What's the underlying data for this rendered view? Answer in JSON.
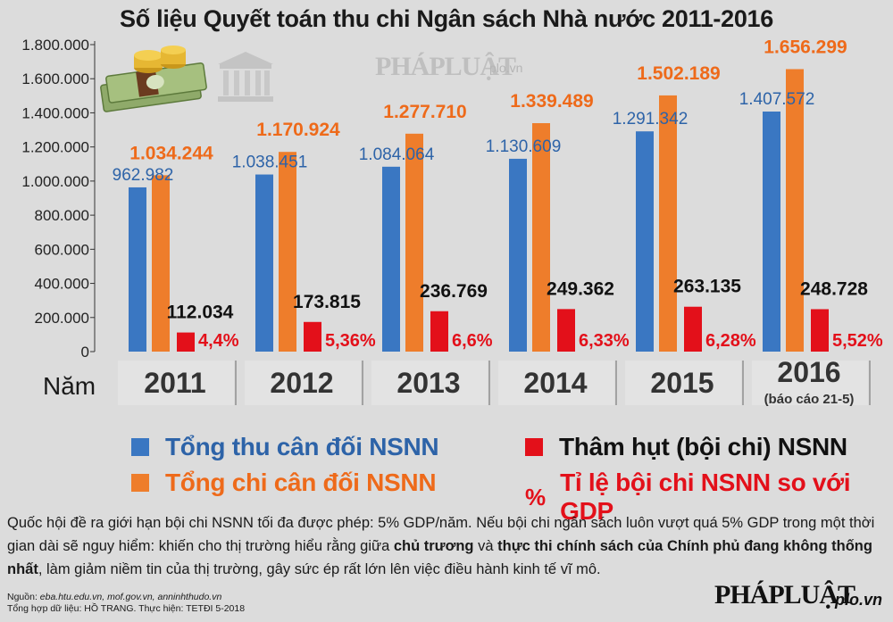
{
  "title": "Số liệu Quyết toán thu chi Ngân sách Nhà nước 2011-2016",
  "watermark": {
    "brand": "PHÁPLUẬT",
    "site": "plo.vn"
  },
  "colors": {
    "revenue": "#3a77c2",
    "expenditure": "#ee7d2b",
    "deficit": "#e3101a",
    "revenue_label": "#2d63a8",
    "expenditure_label": "#ee6a1a",
    "deficit_pct": "#e3101a"
  },
  "chart_data": {
    "type": "bar",
    "title": "Số liệu Quyết toán thu chi Ngân sách Nhà nước 2011-2016",
    "xlabel": "Năm",
    "categories": [
      "2011",
      "2012",
      "2013",
      "2014",
      "2015",
      "2016"
    ],
    "category_sublabels": [
      "",
      "",
      "",
      "",
      "",
      "(báo cáo 21-5)"
    ],
    "ylim": [
      0,
      1800000
    ],
    "yticks": [
      "1.800.000",
      "1.600.000",
      "1.400.000",
      "1.200.000",
      "1.000.000",
      "800.000",
      "600.000",
      "400.000",
      "200.000",
      "0"
    ],
    "series": [
      {
        "name": "Tổng thu cân đối NSNN",
        "values": [
          962982,
          1038451,
          1084064,
          1130609,
          1291342,
          1407572
        ],
        "labels": [
          "962.982",
          "1.038.451",
          "1.084.064",
          "1.130.609",
          "1.291.342",
          "1.407.572"
        ]
      },
      {
        "name": "Tổng chi cân đối NSNN",
        "values": [
          1034244,
          1170924,
          1277710,
          1339489,
          1502189,
          1656299
        ],
        "labels": [
          "1.034.244",
          "1.170.924",
          "1.277.710",
          "1.339.489",
          "1.502.189",
          "1.656.299"
        ]
      },
      {
        "name": "Thâm hụt (bội chi) NSNN",
        "values": [
          112034,
          173815,
          236769,
          249362,
          263135,
          248728
        ],
        "labels": [
          "112.034",
          "173.815",
          "236.769",
          "249.362",
          "263.135",
          "248.728"
        ]
      }
    ],
    "deficit_gdp_ratio": [
      "4,4%",
      "5,36%",
      "6,6%",
      "6,33%",
      "6,28%",
      "5,52%"
    ],
    "legend_position": "bottom",
    "grid": false
  },
  "legend": {
    "revenue": "Tổng thu cân đối NSNN",
    "expenditure": "Tổng chi cân đối NSNN",
    "deficit": "Thâm hụt (bội chi) NSNN",
    "pct_symbol": "%",
    "ratio": "Tỉ lệ bội chi NSNN so với GDP"
  },
  "note": {
    "p1": "Quốc hội đề ra giới hạn bội chi NSNN tối đa được phép: 5% GDP/năm. Nếu bội chi ngân sách luôn vượt quá 5% GDP trong một thời gian dài sẽ nguy hiểm: khiến cho thị trường hiểu rằng giữa ",
    "b1": "chủ trương",
    "p2": " và ",
    "b2": "thực thi chính sách của Chính phủ đang không thống nhất",
    "p3": ", làm giảm niềm tin của thị trường, gây sức ép rất lớn lên việc điều hành kinh tế vĩ mô."
  },
  "source": {
    "label": "Nguồn: ",
    "sites": "eba.htu.edu.vn, mof.gov.vn, anninhthudo.vn",
    "credit": "Tổng hợp dữ liệu: HỒ TRANG. Thực hiện: TETĐI  5-2018"
  },
  "logo": {
    "brand": "PHÁPLUẬT",
    "site": "plo.vn"
  }
}
